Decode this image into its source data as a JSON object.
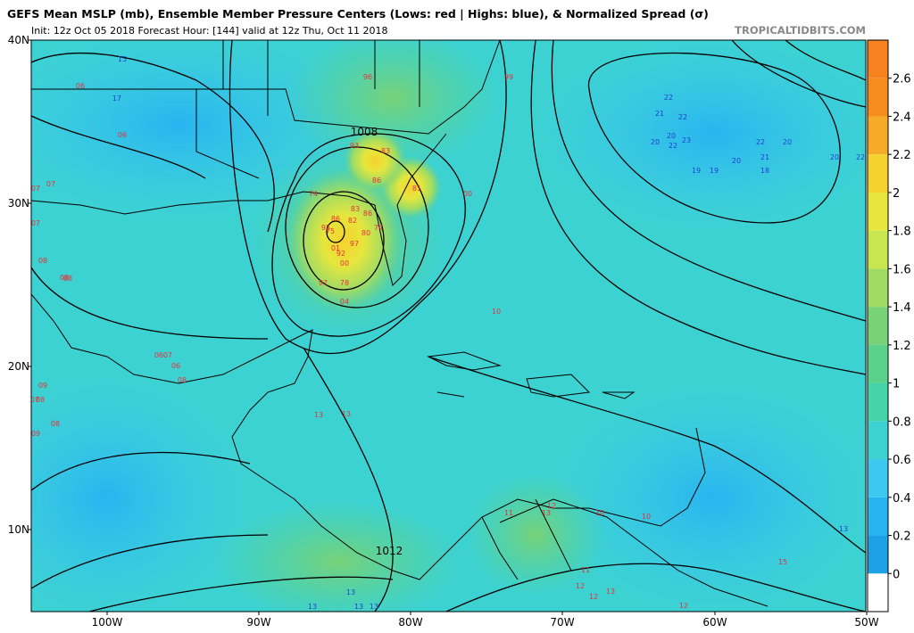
{
  "header": {
    "title": "GEFS Mean MSLP (mb), Ensemble Member Pressure Centers (Lows: red | Highs: blue), & Normalized Spread (σ)",
    "subtitle": "Init: 12z Oct 05 2018   Forecast Hour: [144]   valid at 12z Thu, Oct 11 2018",
    "site": "TROPICALTIDBITS.COM"
  },
  "map": {
    "lat_labels": [
      "40N",
      "30N",
      "20N",
      "10N"
    ],
    "lon_labels": [
      "100W",
      "90W",
      "80W",
      "70W",
      "60W",
      "50W"
    ],
    "isobar_labels": [
      "1008",
      "1012"
    ],
    "lows": [
      "96",
      "99",
      "93",
      "83",
      "86",
      "81",
      "00",
      "74",
      "83",
      "86",
      "82",
      "74",
      "86",
      "75",
      "97",
      "80",
      "95",
      "01",
      "92",
      "00",
      "97",
      "78",
      "04",
      "10",
      "06",
      "06",
      "07",
      "07",
      "07",
      "08",
      "08",
      "08",
      "07",
      "06",
      "06",
      "08",
      "07",
      "08",
      "09",
      "09",
      "08",
      "13",
      "13",
      "11",
      "13",
      "12",
      "10",
      "10",
      "11",
      "12",
      "12",
      "13",
      "12",
      "15"
    ],
    "highs": [
      "15",
      "17",
      "22",
      "21",
      "22",
      "20",
      "20",
      "23",
      "22",
      "19",
      "19",
      "20",
      "22",
      "21",
      "20",
      "18",
      "22",
      "20",
      "13",
      "13",
      "13",
      "13",
      "13"
    ]
  },
  "colorbar": {
    "ticks": [
      0,
      0.2,
      0.4,
      0.6,
      0.8,
      1,
      1.2,
      1.4,
      1.6,
      1.8,
      2,
      2.2,
      2.4,
      2.6
    ],
    "colors": [
      "#ffffff",
      "#1ea0e6",
      "#28b4f0",
      "#3cc8f0",
      "#3cd2d2",
      "#46d2aa",
      "#5ad28c",
      "#78d278",
      "#a0dc64",
      "#c8e650",
      "#e6e63c",
      "#f5d22d",
      "#f5aa28",
      "#f58c1e",
      "#f5821f"
    ]
  }
}
